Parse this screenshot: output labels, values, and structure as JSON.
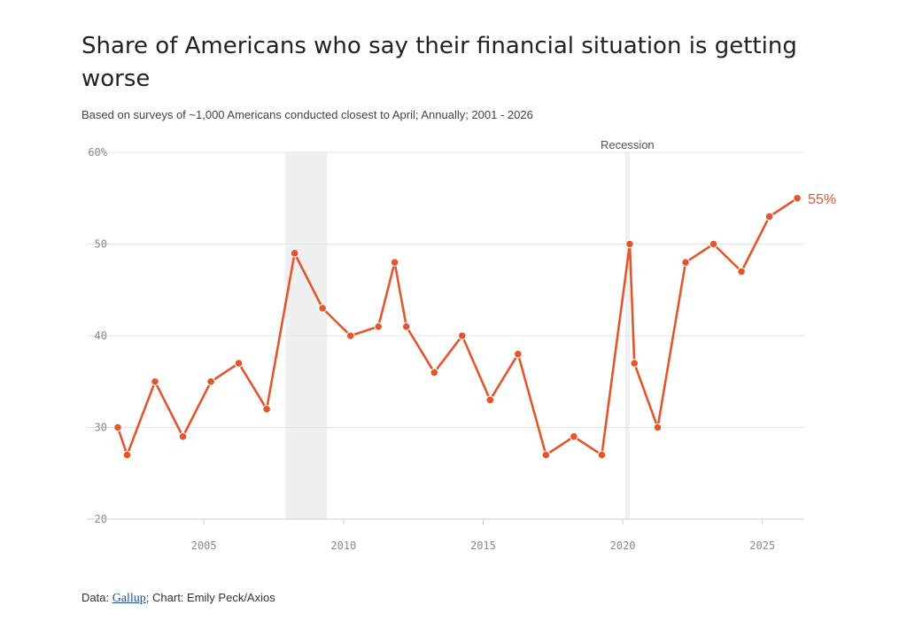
{
  "title": "Share of Americans who say their financial situation is getting worse",
  "subtitle": "Based on surveys of ~1,000 Americans conducted closest to April; Annually; 2001 - 2026",
  "footer": {
    "data_prefix": "Data: ",
    "source_link": "Gallup",
    "credit": "; Chart: Emily Peck/Axios"
  },
  "colors": {
    "line": "#e2562e",
    "recession_shade": "#f0f0f0",
    "gridline": "#e3e3e3"
  },
  "chart_data": {
    "type": "line",
    "title": "Share of Americans who say their financial situation is getting worse",
    "xlabel": "",
    "ylabel": "",
    "ylim": [
      20,
      60
    ],
    "xlim": [
      2001.6,
      2026.5
    ],
    "y_ticks": [
      20,
      30,
      40,
      50,
      60
    ],
    "y_tick_labels": [
      "20",
      "30",
      "40",
      "50",
      "60%"
    ],
    "x_ticks": [
      2005,
      2010,
      2015,
      2020,
      2025
    ],
    "x_tick_labels": [
      "2005",
      "2010",
      "2015",
      "2020",
      "2025"
    ],
    "grid": true,
    "series": [
      {
        "points": [
          {
            "x": "2001-12",
            "y": 30
          },
          {
            "x": "2002-04",
            "y": 27
          },
          {
            "x": "2003-04",
            "y": 35
          },
          {
            "x": "2004-04",
            "y": 29
          },
          {
            "x": "2005-04",
            "y": 35
          },
          {
            "x": "2006-04",
            "y": 37
          },
          {
            "x": "2007-04",
            "y": 32
          },
          {
            "x": "2008-04",
            "y": 49
          },
          {
            "x": "2009-04",
            "y": 43
          },
          {
            "x": "2010-04",
            "y": 40
          },
          {
            "x": "2011-04",
            "y": 41
          },
          {
            "x": "2011-11",
            "y": 48
          },
          {
            "x": "2012-04",
            "y": 41
          },
          {
            "x": "2013-04",
            "y": 36
          },
          {
            "x": "2014-04",
            "y": 40
          },
          {
            "x": "2015-04",
            "y": 33
          },
          {
            "x": "2016-04",
            "y": 38
          },
          {
            "x": "2017-04",
            "y": 27
          },
          {
            "x": "2018-04",
            "y": 29
          },
          {
            "x": "2019-04",
            "y": 27
          },
          {
            "x": "2020-04",
            "y": 50
          },
          {
            "x": "2020-06",
            "y": 37
          },
          {
            "x": "2021-04",
            "y": 30
          },
          {
            "x": "2022-04",
            "y": 48
          },
          {
            "x": "2023-04",
            "y": 50
          },
          {
            "x": "2024-04",
            "y": 47
          },
          {
            "x": "2025-04",
            "y": 53
          },
          {
            "x": "2026-04",
            "y": 55
          }
        ]
      }
    ],
    "recessions": [
      {
        "start": "2007-12",
        "end": "2009-06"
      },
      {
        "start": "2020-02",
        "end": "2020-04"
      }
    ],
    "recession_label": "Recession",
    "end_label": "55%"
  }
}
